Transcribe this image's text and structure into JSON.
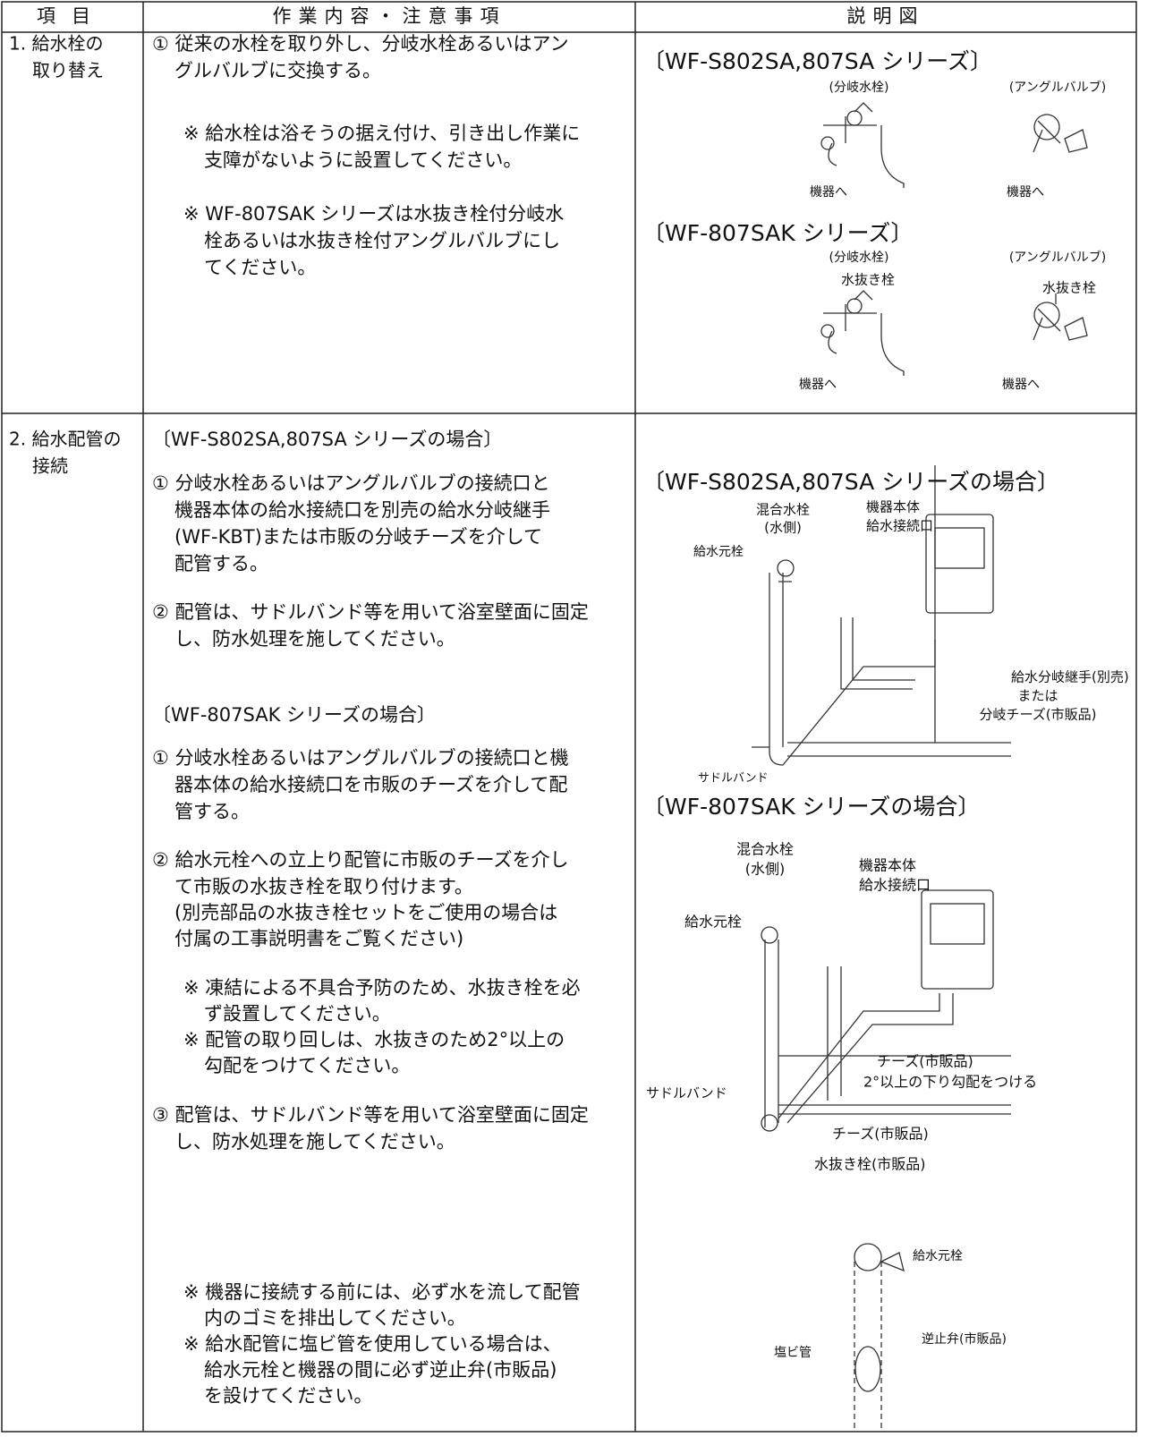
{
  "table": {
    "header": [
      "項目",
      "作業内容・注意事項",
      "説明図"
    ],
    "rows": [
      {
        "item": [
          "1. 給水栓の",
          "取り替え"
        ],
        "content": [
          "① 従来の水栓を取り外し、分岐水栓あるいはアン",
          "グルバルブに交換する。",
          "※ 給水栓は浴そうの据え付け、引き出し作業に",
          "支障がないように設置してください。",
          "※ WF-807SAK シリーズは水抜き栓付分岐水",
          "栓あるいは水抜き栓付アングルバルブにし",
          "てください。"
        ],
        "diagram": [
          "〔WF-S802SA,807SA シリーズ〕",
          "(分岐水栓)",
          "(アングルバルブ)",
          "機器へ",
          "機器へ",
          "〔WF-807SAK シリーズ〕",
          "(分岐水栓)",
          "(アングルバルブ)",
          "水抜き栓",
          "水抜き栓",
          "機器へ",
          "機器へ"
        ]
      },
      {
        "item": [
          "2. 給水配管の",
          "接続"
        ],
        "content": [
          "〔WF-S802SA,807SA シリーズの場合〕",
          "① 分岐水栓あるいはアングルバルブの接続口と",
          "機器本体の給水接続口を別売の給水分岐継手",
          "(WF-KBT)または市販の分岐チーズを介して",
          "配管する。",
          "② 配管は、サドルバンド等を用いて浴室壁面に固定",
          "し、防水処理を施してください。",
          "〔WF-807SAK シリーズの場合〕",
          "① 分岐水栓あるいはアングルバルブの接続口と機",
          "器本体の給水接続口を市販のチーズを介して配",
          "管する。",
          "② 給水元栓への立上り配管に市販のチーズを介し",
          "て市販の水抜き栓を取り付けます。",
          "(別売部品の水抜き栓セットをご使用の場合は",
          "付属の工事説明書をご覧ください)",
          "※ 凍結による不具合予防のため、水抜き栓を必",
          "ず設置してください。",
          "※ 配管の取り回しは、水抜きのため2°以上の",
          "勾配をつけてください。",
          "③ 配管は、サドルバンド等を用いて浴室壁面に固定",
          "し、防水処理を施してください。",
          "※ 機器に接続する前には、必ず水を流して配管",
          "内のゴミを排出してください。",
          "※ 給水配管に塩ビ管を使用している場合は、",
          "給水元栓と機器の間に必ず逆止弁(市販品)",
          "を設けてください。"
        ],
        "diagram": [
          "〔WF-S802SA,807SA シリーズの場合〕",
          "混合水栓",
          "(水側)",
          "機器本体",
          "給水接続口",
          "給水元栓",
          "給水分岐継手(別売)",
          "または",
          "分岐チーズ(市販品)",
          "サドルバンド",
          "〔WF-807SAK シリーズの場合〕",
          "混合水栓",
          "(水側)",
          "機器本体",
          "給水接続口",
          "給水元栓",
          "チーズ(市販品)",
          "2°以上の下り勾配をつける",
          "サドルバンド",
          "チーズ(市販品)",
          "水抜き栓(市販品)",
          "給水元栓",
          "塩ビ管",
          "逆止弁(市販品)"
        ]
      }
    ]
  }
}
